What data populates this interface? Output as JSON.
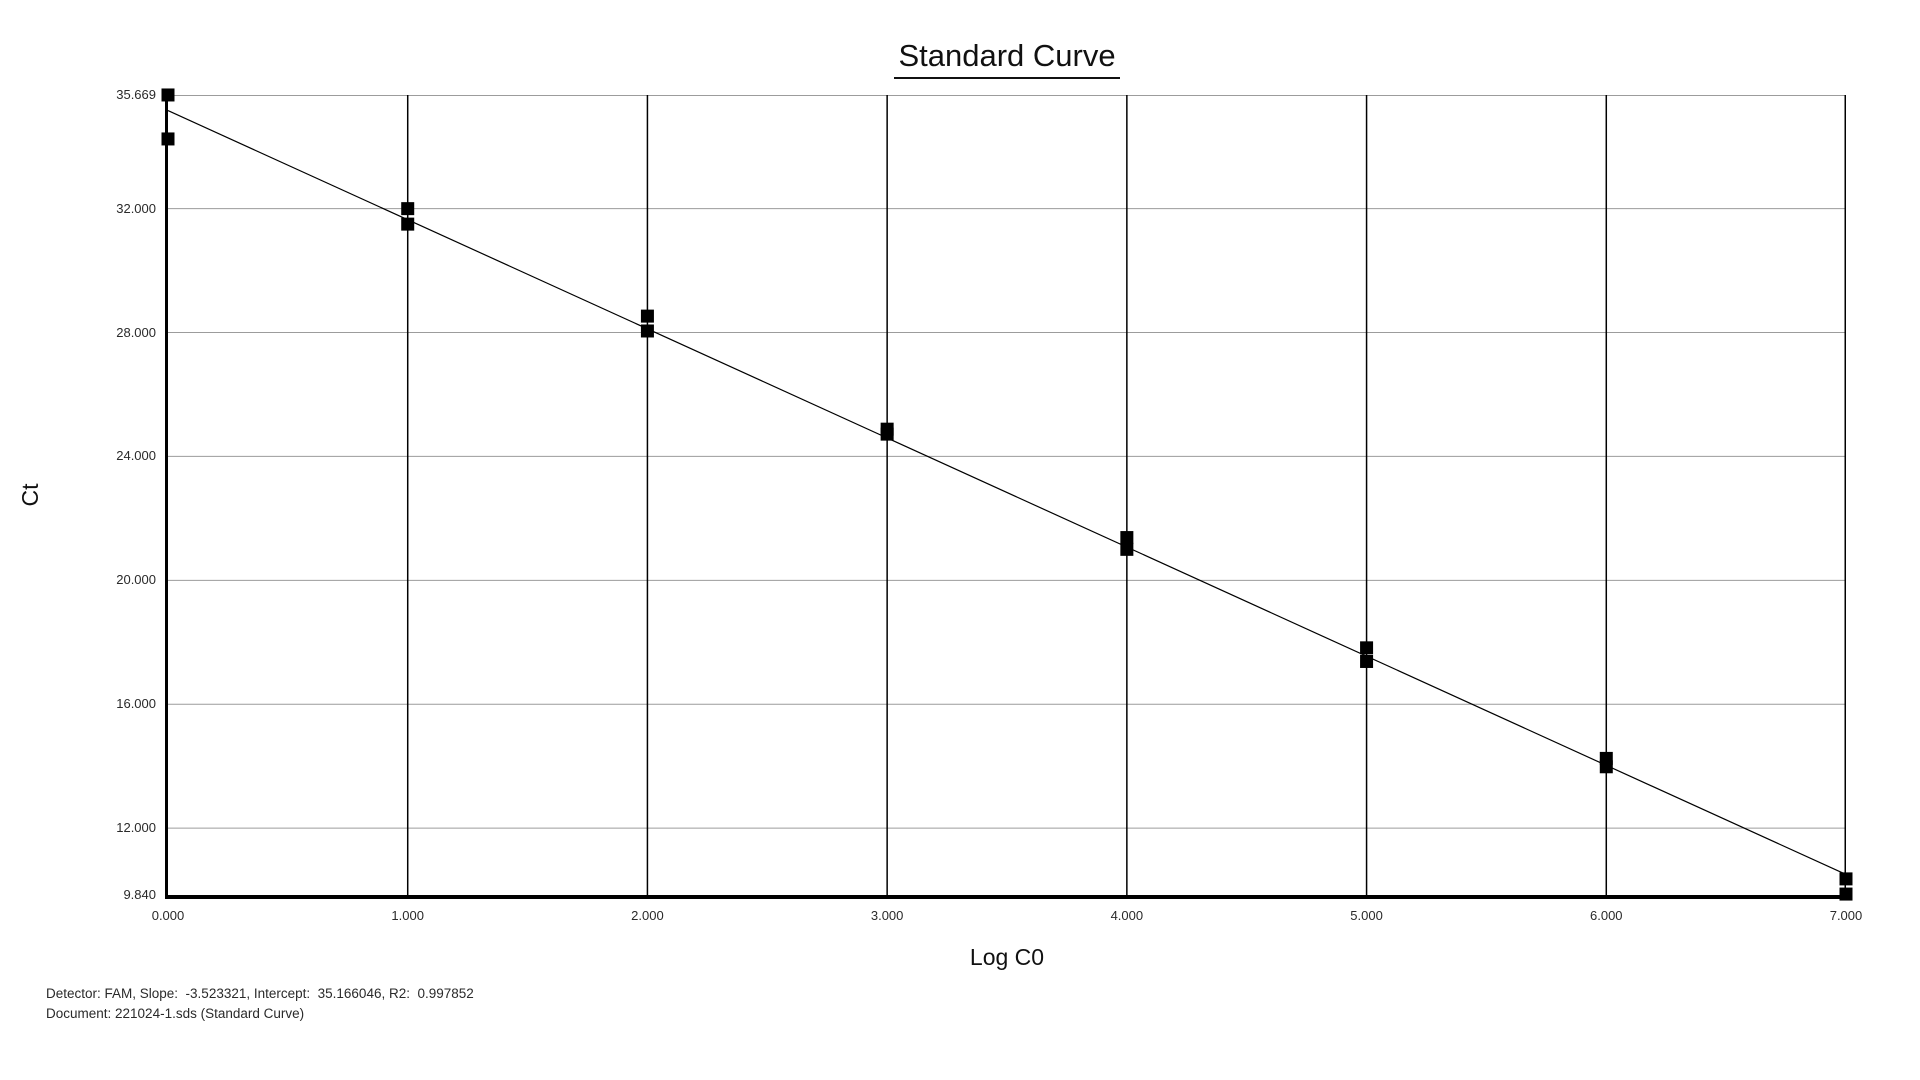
{
  "title": "Standard Curve",
  "axes": {
    "y_label": "Ct",
    "x_label": "Log C0",
    "y_tick_labels": [
      "35.669",
      "32.000",
      "28.000",
      "24.000",
      "20.000",
      "16.000",
      "12.000",
      "9.840"
    ],
    "x_tick_labels": [
      "0.000",
      "1.000",
      "2.000",
      "3.000",
      "4.000",
      "5.000",
      "6.000",
      "7.000"
    ]
  },
  "footer": {
    "stats_line": "Detector: FAM, Slope:  -3.523321, Intercept:  35.166046, R2:  0.997852",
    "document_line": "Document: 221024-1.sds (Standard Curve)"
  },
  "colors": {
    "background": "#ffffff",
    "text": "#1b1b1b",
    "axis": "#000000",
    "h_gridline": "#9c9c9c",
    "v_gridline": "#000000",
    "marker": "#000000",
    "fit_line": "#000000"
  },
  "chart_data": {
    "type": "scatter",
    "title": "Standard Curve",
    "xlabel": "Log C0",
    "ylabel": "Ct",
    "xlim": [
      0,
      7
    ],
    "ylim": [
      9.84,
      35.669
    ],
    "x_tick_values": [
      0,
      1,
      2,
      3,
      4,
      5,
      6,
      7
    ],
    "y_tick_values": [
      35.669,
      32.0,
      28.0,
      24.0,
      20.0,
      16.0,
      12.0,
      9.84
    ],
    "grid": "on",
    "legend": "none",
    "marker_style": "black-square",
    "points": [
      {
        "log_c0": 0,
        "ct": 35.67
      },
      {
        "log_c0": 0,
        "ct": 34.25
      },
      {
        "log_c0": 1,
        "ct": 32.0
      },
      {
        "log_c0": 1,
        "ct": 31.5
      },
      {
        "log_c0": 2,
        "ct": 28.53
      },
      {
        "log_c0": 2,
        "ct": 28.05
      },
      {
        "log_c0": 3,
        "ct": 24.88
      },
      {
        "log_c0": 3,
        "ct": 24.72
      },
      {
        "log_c0": 4,
        "ct": 21.38
      },
      {
        "log_c0": 4,
        "ct": 21.0
      },
      {
        "log_c0": 5,
        "ct": 17.82
      },
      {
        "log_c0": 5,
        "ct": 17.38
      },
      {
        "log_c0": 6,
        "ct": 14.25
      },
      {
        "log_c0": 6,
        "ct": 13.98
      },
      {
        "log_c0": 7,
        "ct": 10.36
      },
      {
        "log_c0": 7,
        "ct": 9.87
      }
    ],
    "fit_line": {
      "detector": "FAM",
      "slope": -3.523321,
      "intercept": 35.166046,
      "r2": 0.997852
    }
  }
}
